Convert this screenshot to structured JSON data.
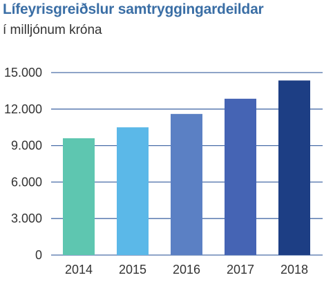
{
  "header": {
    "title": "Lífeyrisgreiðslur samtryggingardeildar",
    "subtitle": "í milljónum króna"
  },
  "chart_data": {
    "type": "bar",
    "title": "Lífeyrisgreiðslur samtryggingardeildar",
    "subtitle": "í milljónum króna",
    "categories": [
      "2014",
      "2015",
      "2016",
      "2017",
      "2018"
    ],
    "values": [
      9600,
      10500,
      11600,
      12850,
      14350
    ],
    "bar_colors": [
      "#5ec6b0",
      "#5bb8e8",
      "#5b80c4",
      "#4564b4",
      "#1d3e84"
    ],
    "gridline_color": "#4a6ea8",
    "ylim": [
      0,
      15000
    ],
    "yticks": [
      0,
      3000,
      6000,
      9000,
      12000,
      15000
    ],
    "ytick_labels": [
      "0",
      "3.000",
      "6.000",
      "9.000",
      "12.000",
      "15.000"
    ],
    "grid": true,
    "xlabel": "",
    "ylabel": ""
  }
}
